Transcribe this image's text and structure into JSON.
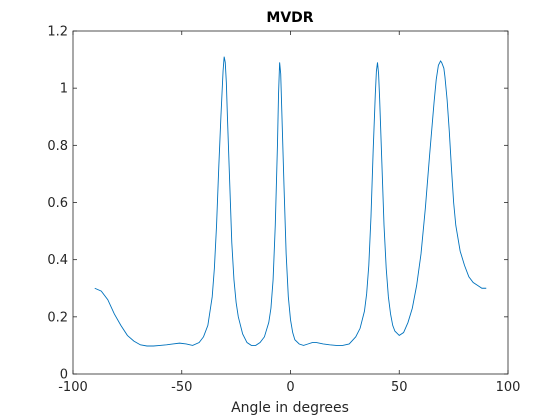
{
  "chart_data": {
    "type": "line",
    "title": "MVDR",
    "xlabel": "Angle in degrees",
    "ylabel": "",
    "xlim": [
      -100,
      100
    ],
    "ylim": [
      0,
      1.2
    ],
    "xticks": [
      -100,
      -50,
      0,
      50,
      100
    ],
    "xtick_labels": [
      "-100",
      "-50",
      "0",
      "50",
      "100"
    ],
    "yticks": [
      0,
      0.2,
      0.4,
      0.6,
      0.8,
      1,
      1.2
    ],
    "ytick_labels": [
      "0",
      "0.2",
      "0.4",
      "0.6",
      "0.8",
      "1",
      "1.2"
    ],
    "grid": false,
    "series": [
      {
        "color": "#0072bd",
        "x": [
          -90,
          -87,
          -84,
          -81,
          -78,
          -75,
          -72,
          -69,
          -66,
          -63,
          -60,
          -57,
          -54,
          -51,
          -48,
          -45,
          -42,
          -40,
          -38,
          -36,
          -35,
          -34,
          -33,
          -32,
          -31,
          -30.5,
          -30,
          -29.5,
          -29,
          -28,
          -27,
          -26,
          -25,
          -24,
          -22,
          -20,
          -18,
          -16,
          -14,
          -12,
          -10,
          -9,
          -8,
          -7,
          -6,
          -5.5,
          -5,
          -4.5,
          -4,
          -3,
          -2,
          -1,
          0,
          1,
          2,
          4,
          6,
          8,
          10,
          12,
          15,
          18,
          21,
          24,
          27,
          30,
          32,
          34,
          35,
          36,
          37,
          38,
          39,
          39.5,
          40,
          40.5,
          41,
          42,
          43,
          44,
          45,
          46,
          47,
          48,
          50,
          52,
          54,
          56,
          58,
          60,
          62,
          64,
          66,
          67,
          68,
          69,
          69.5,
          70,
          70.5,
          71,
          72,
          73,
          74,
          75,
          76,
          78,
          80,
          82,
          84,
          86,
          88,
          90
        ],
        "y": [
          0.3,
          0.29,
          0.26,
          0.21,
          0.17,
          0.135,
          0.115,
          0.102,
          0.098,
          0.098,
          0.1,
          0.102,
          0.105,
          0.108,
          0.105,
          0.1,
          0.11,
          0.13,
          0.17,
          0.27,
          0.37,
          0.52,
          0.72,
          0.9,
          1.06,
          1.11,
          1.09,
          1.02,
          0.9,
          0.68,
          0.46,
          0.33,
          0.25,
          0.2,
          0.14,
          0.11,
          0.1,
          0.1,
          0.11,
          0.13,
          0.18,
          0.23,
          0.33,
          0.52,
          0.8,
          0.98,
          1.09,
          1.05,
          0.92,
          0.66,
          0.42,
          0.27,
          0.19,
          0.145,
          0.12,
          0.105,
          0.1,
          0.105,
          0.11,
          0.11,
          0.105,
          0.102,
          0.1,
          0.1,
          0.105,
          0.13,
          0.16,
          0.22,
          0.28,
          0.38,
          0.55,
          0.78,
          0.98,
          1.06,
          1.09,
          1.05,
          0.96,
          0.74,
          0.52,
          0.37,
          0.27,
          0.21,
          0.17,
          0.15,
          0.135,
          0.145,
          0.18,
          0.23,
          0.31,
          0.42,
          0.58,
          0.77,
          0.95,
          1.03,
          1.08,
          1.095,
          1.09,
          1.08,
          1.07,
          1.04,
          0.96,
          0.85,
          0.72,
          0.6,
          0.52,
          0.43,
          0.38,
          0.34,
          0.32,
          0.31,
          0.3,
          0.3
        ]
      }
    ]
  }
}
